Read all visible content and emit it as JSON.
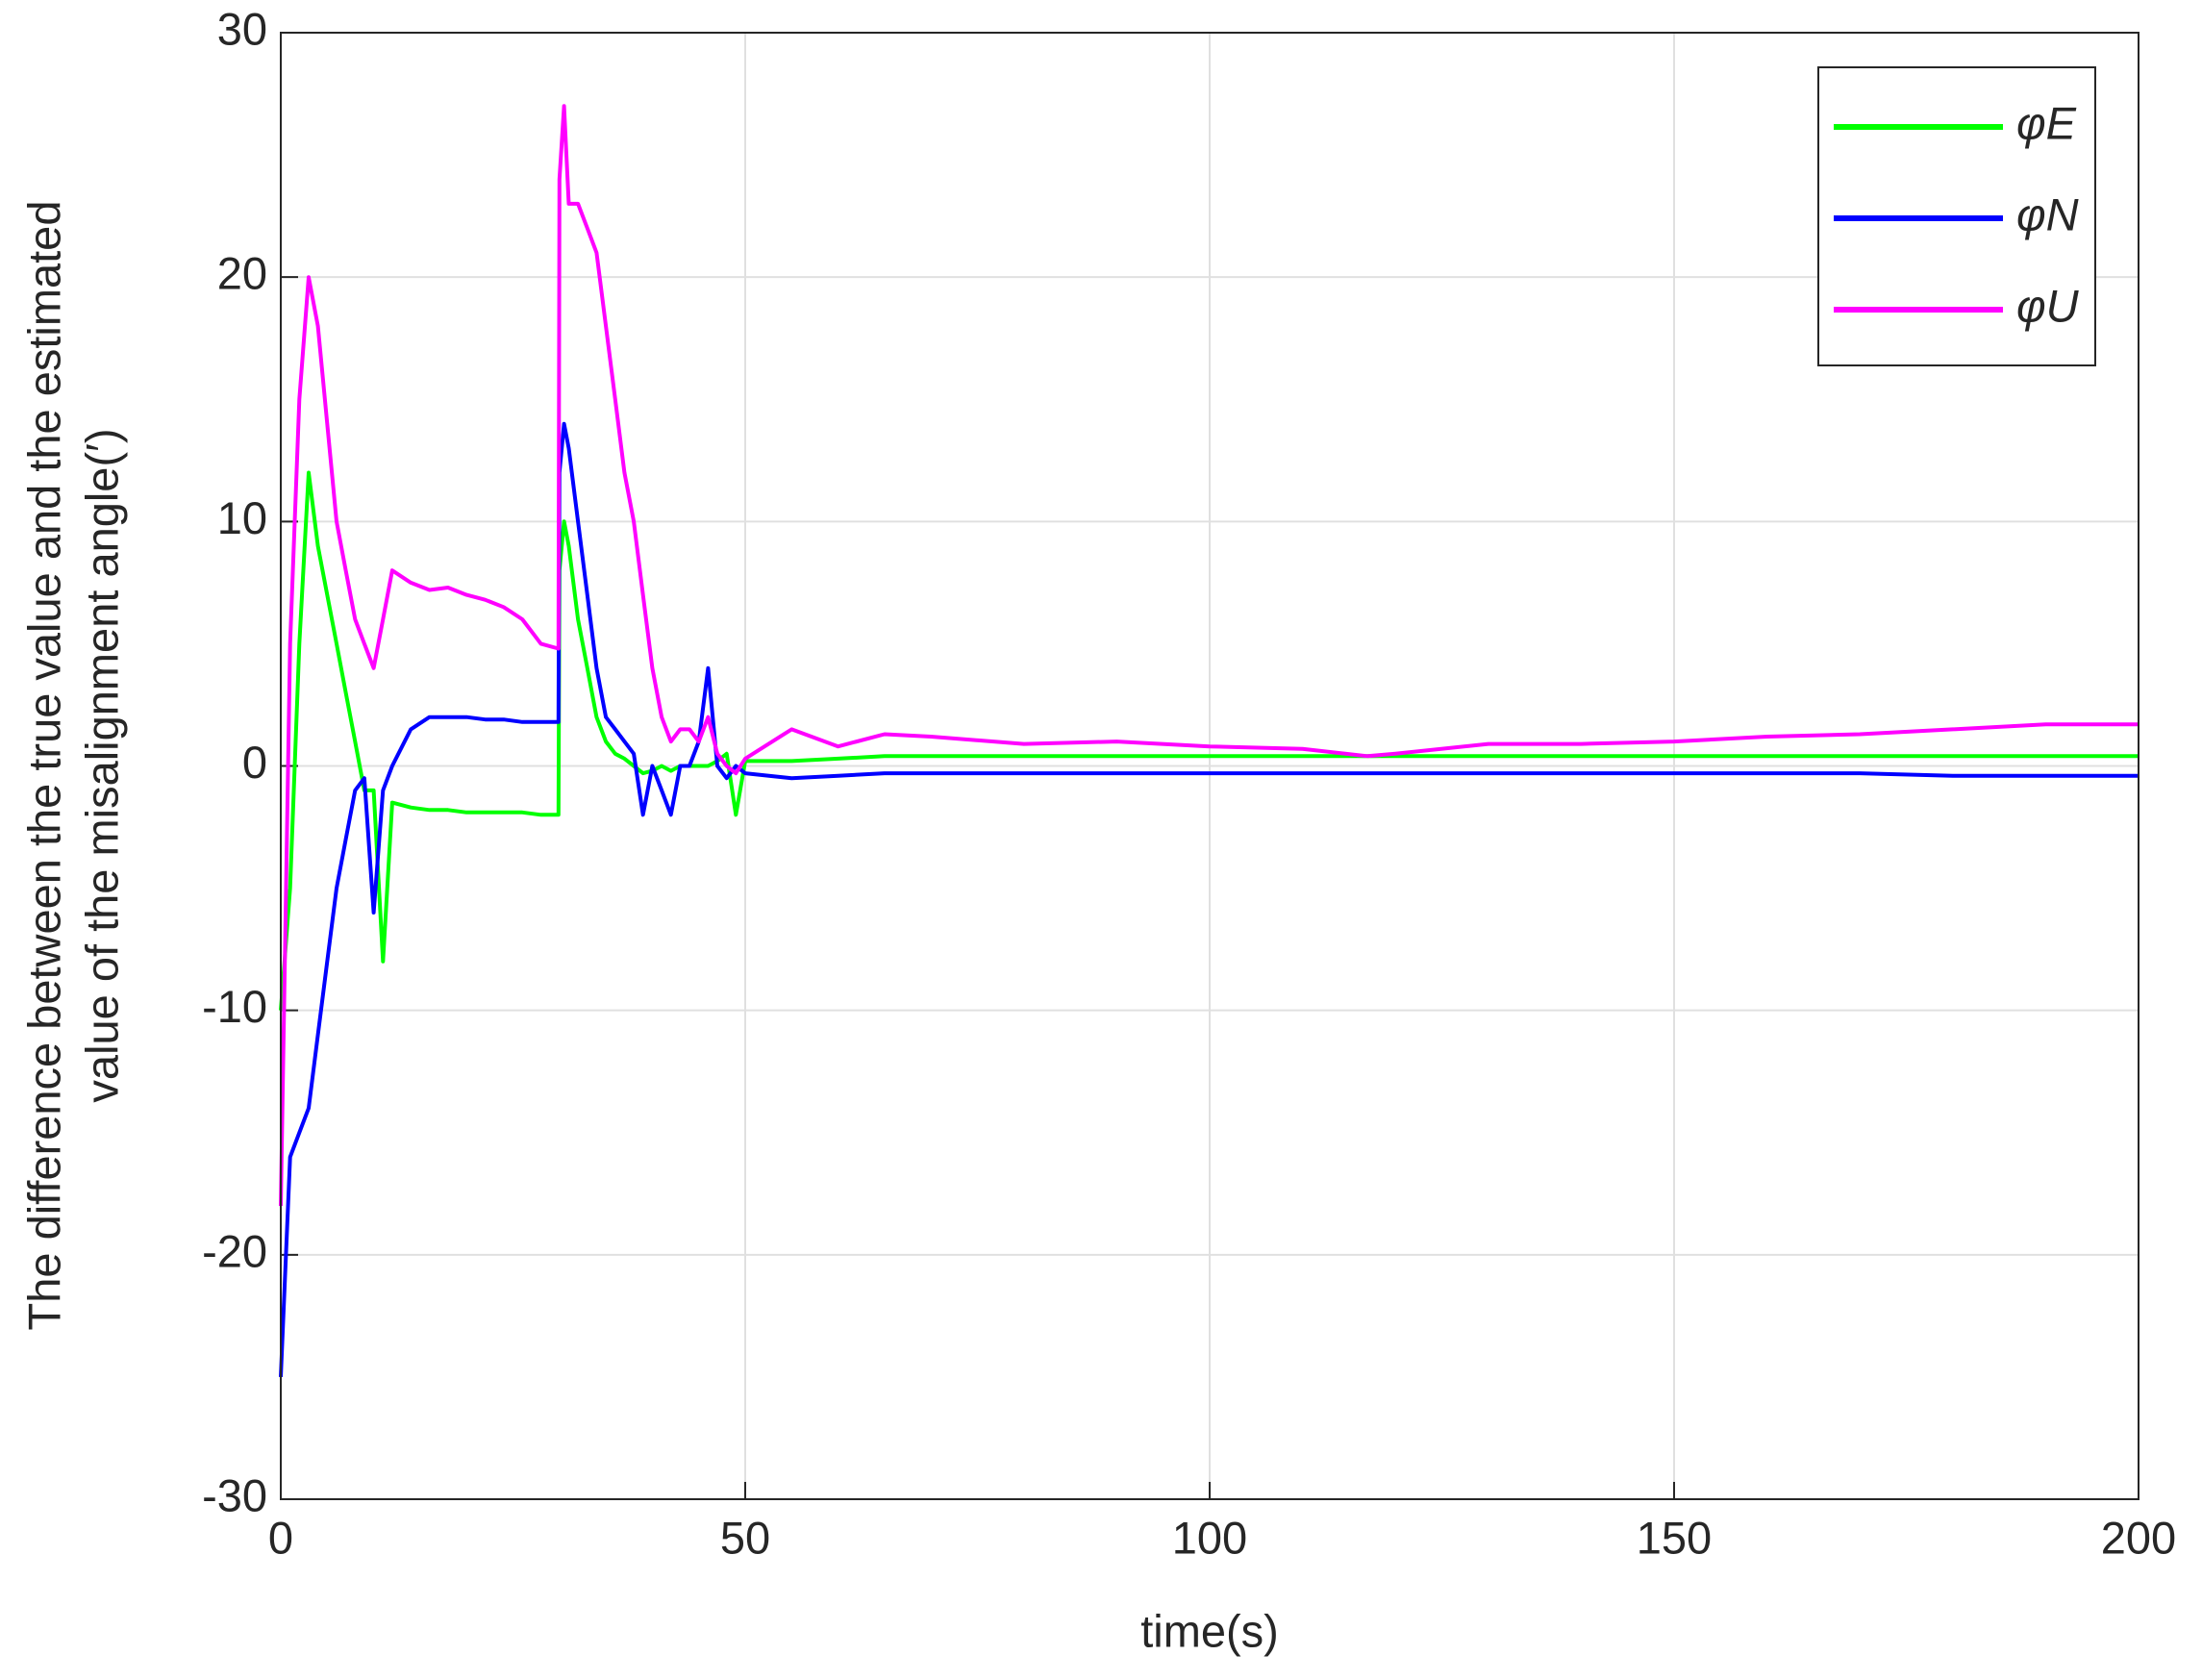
{
  "chart_data": {
    "type": "line",
    "xlabel": "time(s)",
    "ylabel": [
      "The difference between the true value and the estimated",
      "value of the misalignment angle(′)"
    ],
    "x": [
      0,
      1,
      2,
      3,
      4,
      5,
      6,
      7,
      8,
      9,
      10,
      11,
      12,
      14,
      16,
      18,
      20,
      22,
      24,
      26,
      28,
      29.9,
      30,
      30.5,
      31,
      32,
      33,
      34,
      35,
      36,
      37,
      38,
      39,
      40,
      41,
      42,
      43,
      44,
      45,
      46,
      47,
      48,
      49,
      50,
      55,
      60,
      65,
      70,
      80,
      90,
      100,
      110,
      117,
      120,
      130,
      140,
      150,
      160,
      170,
      180,
      190,
      200
    ],
    "series": [
      {
        "name": "φE",
        "color": "#00ff00",
        "values": [
          -10,
          -5,
          5,
          12,
          9,
          7,
          5,
          3,
          1,
          -1,
          -1,
          -8,
          -1.5,
          -1.7,
          -1.8,
          -1.8,
          -1.9,
          -1.9,
          -1.9,
          -1.9,
          -2,
          -2,
          8,
          10,
          9,
          6,
          4,
          2,
          1,
          0.5,
          0.3,
          0,
          -0.3,
          -0.2,
          0,
          -0.2,
          0,
          0,
          0,
          0,
          0.2,
          0.5,
          -2,
          0.2,
          0.2,
          0.3,
          0.4,
          0.4,
          0.4,
          0.4,
          0.4,
          0.4,
          0.4,
          0.4,
          0.4,
          0.4,
          0.4,
          0.4,
          0.4,
          0.4,
          0.4,
          0.4
        ]
      },
      {
        "name": "φN",
        "color": "#0000ff",
        "values": [
          -25,
          -16,
          -15,
          -14,
          -11,
          -8,
          -5,
          -3,
          -1,
          -0.5,
          -6,
          -1,
          0,
          1.5,
          2,
          2,
          2,
          1.9,
          1.9,
          1.8,
          1.8,
          1.8,
          12,
          14,
          13,
          10,
          7,
          4,
          2,
          1.5,
          1,
          0.5,
          -2,
          0,
          -1,
          -2,
          0,
          0,
          1,
          4,
          0,
          -0.5,
          0,
          -0.3,
          -0.5,
          -0.4,
          -0.3,
          -0.3,
          -0.3,
          -0.3,
          -0.3,
          -0.3,
          -0.3,
          -0.3,
          -0.3,
          -0.3,
          -0.3,
          -0.3,
          -0.3,
          -0.4,
          -0.4,
          -0.4
        ]
      },
      {
        "name": "φU",
        "color": "#ff00ff",
        "values": [
          -18,
          5,
          15,
          20,
          18,
          14,
          10,
          8,
          6,
          5,
          4,
          6,
          8,
          7.5,
          7.2,
          7.3,
          7,
          6.8,
          6.5,
          6,
          5,
          4.8,
          24,
          27,
          23,
          23,
          22,
          21,
          18,
          15,
          12,
          10,
          7,
          4,
          2,
          1,
          1.5,
          1.5,
          1,
          2,
          0.5,
          0,
          -0.3,
          0.3,
          1.5,
          0.8,
          1.3,
          1.2,
          0.9,
          1,
          0.8,
          0.7,
          0.4,
          0.5,
          0.9,
          0.9,
          1,
          1.2,
          1.3,
          1.5,
          1.7,
          1.7
        ]
      }
    ],
    "xlim": [
      0,
      200
    ],
    "xticks": [
      0,
      50,
      100,
      150,
      200
    ],
    "ylim": [
      -30,
      30
    ],
    "yticks": [
      -30,
      -20,
      -10,
      0,
      10,
      20,
      30
    ],
    "grid": true,
    "legend": "upper right"
  }
}
